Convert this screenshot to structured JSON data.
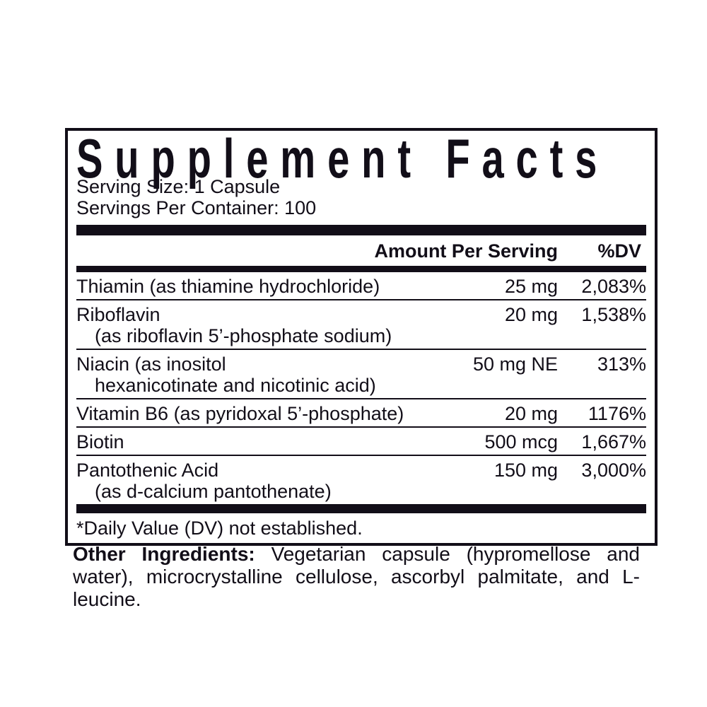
{
  "label": {
    "title": "Supplement Facts",
    "serving_size": "Serving Size: 1 Capsule",
    "servings_per_container": "Servings Per Container: 100",
    "columns": {
      "amount": "Amount Per Serving",
      "dv": "%DV"
    },
    "rows": [
      {
        "name": "Thiamin (as thiamine hydrochloride)",
        "sub": "",
        "amount": "25 mg",
        "dv": "2,083%"
      },
      {
        "name": "Riboflavin",
        "sub": "(as riboflavin 5’-phosphate sodium)",
        "amount": "20 mg",
        "dv": "1,538%"
      },
      {
        "name": "Niacin (as inositol",
        "sub": "hexanicotinate and nicotinic acid)",
        "amount": "50 mg NE",
        "dv": "313%"
      },
      {
        "name": "Vitamin B6 (as pyridoxal 5’-phosphate)",
        "sub": "",
        "amount": "20 mg",
        "dv": "1176%"
      },
      {
        "name": "Biotin",
        "sub": "",
        "amount": "500 mcg",
        "dv": "1,667%"
      },
      {
        "name": "Pantothenic Acid",
        "sub": "(as d-calcium pantothenate)",
        "amount": "150 mg",
        "dv": "3,000%"
      }
    ],
    "footnote": "*Daily Value (DV) not established.",
    "other_ingredients_label": "Other Ingredients:",
    "other_ingredients_text": "Vegetarian capsule (hypromellose and water), microcrystalline cellulose, ascorbyl palmitate, and L-leucine.",
    "ink_color": "#120e18",
    "background_color": "#ffffff"
  }
}
